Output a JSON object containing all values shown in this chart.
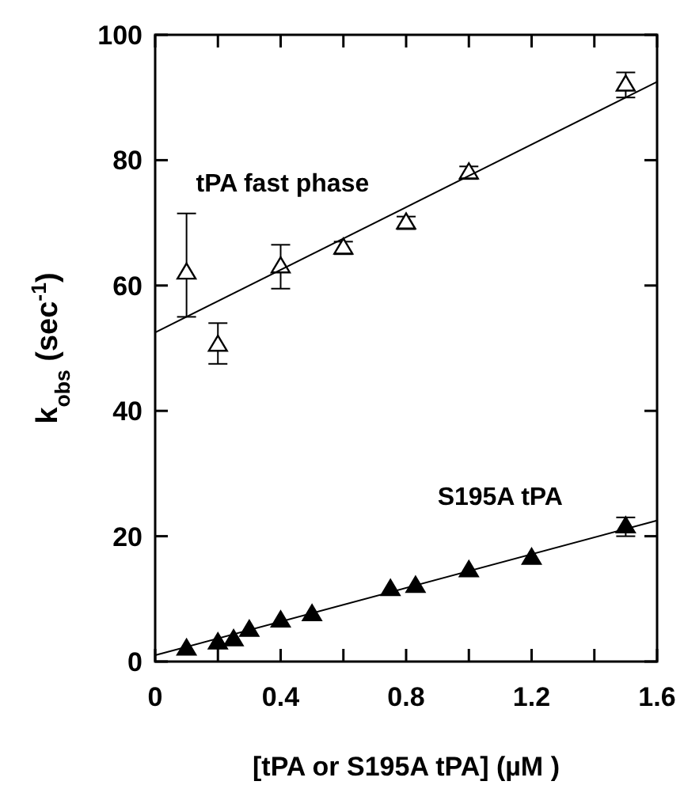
{
  "chart_data": {
    "type": "scatter",
    "xlabel": "[tPA or S195A tPA] (µM )",
    "ylabel": "k$_{obs}$ (sec$^{-1}$)",
    "xlim": [
      0,
      1.6
    ],
    "ylim": [
      0,
      100
    ],
    "xticks": [
      0,
      {
        "value": 0.2,
        "label": null
      },
      0.4,
      {
        "value": 0.6,
        "label": null
      },
      0.8,
      {
        "value": 1.0,
        "label": null
      },
      1.2,
      {
        "value": 1.4,
        "label": null
      },
      1.6
    ],
    "yticks": [
      0,
      20,
      40,
      60,
      80,
      100
    ],
    "marker": "triangle",
    "grid": false,
    "series": [
      {
        "name": "tPA fast phase",
        "color": "#ffffff",
        "x": [
          0.1,
          0.2,
          0.4,
          0.6,
          0.8,
          1.0,
          1.5
        ],
        "values": [
          62,
          50.5,
          63,
          66,
          70,
          78,
          92
        ],
        "errors": [
          [
            55,
            71.5
          ],
          [
            47.5,
            54
          ],
          [
            59.5,
            66.5
          ],
          1,
          1,
          1,
          2
        ]
      },
      {
        "name": "S195A tPA",
        "color": "#000000",
        "x": [
          0.1,
          0.2,
          0.25,
          0.3,
          0.4,
          0.5,
          0.75,
          0.83,
          1.0,
          1.2,
          1.5
        ],
        "values": [
          2,
          3,
          3.5,
          5,
          6.5,
          7.5,
          11.5,
          12,
          14.5,
          16.5,
          21.5
        ],
        "errors": [
          null,
          null,
          null,
          null,
          null,
          null,
          null,
          null,
          null,
          null,
          1.5
        ]
      },
      {
        "type": "line",
        "marker": "none",
        "color": "#000000",
        "x": [
          0,
          1.6
        ],
        "values": [
          52.5,
          92.5
        ]
      },
      {
        "type": "line",
        "marker": "none",
        "color": "#000000",
        "x": [
          0,
          1.6
        ],
        "values": [
          1,
          22.5
        ]
      }
    ]
  }
}
